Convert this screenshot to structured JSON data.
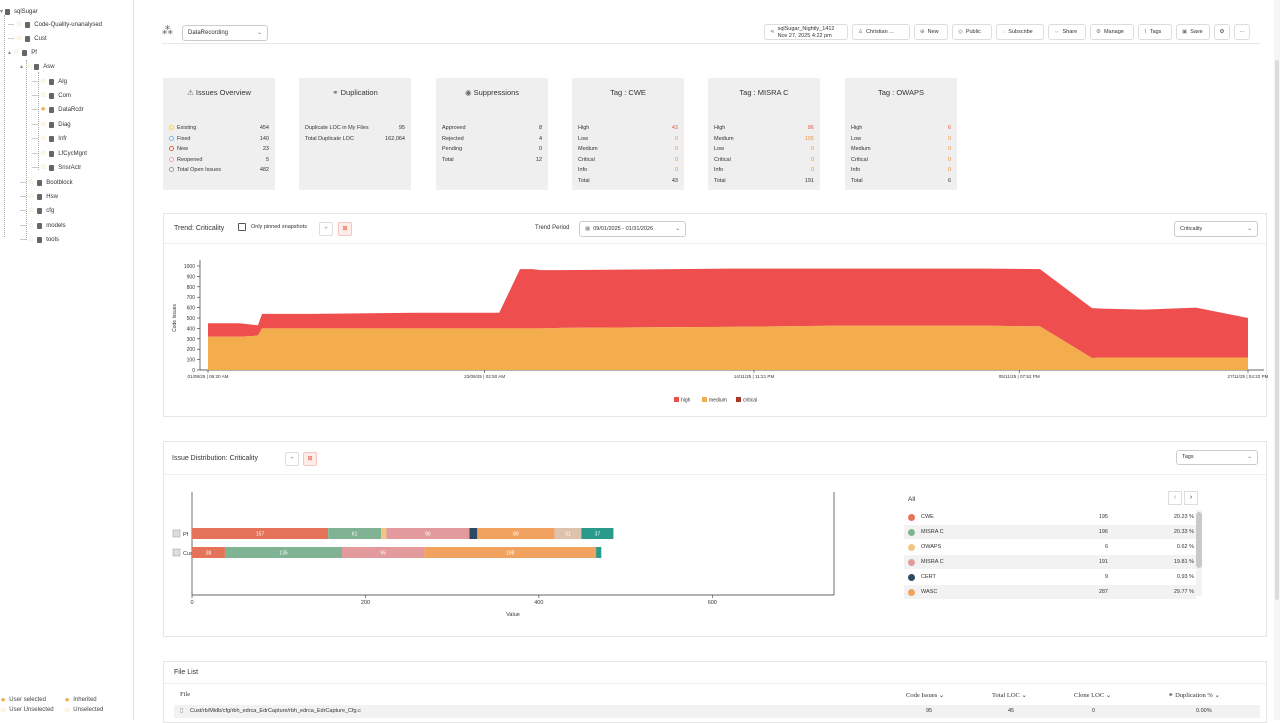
{
  "sidebar": {
    "root": "sqlSugar",
    "items": [
      {
        "label": "Code-Quality-unanalysed"
      },
      {
        "label": "Cust"
      },
      {
        "label": "Pf"
      },
      {
        "label": "Asw"
      },
      {
        "label": "Alg"
      },
      {
        "label": "Com"
      },
      {
        "label": "DataRcdr"
      },
      {
        "label": "Diag"
      },
      {
        "label": "Infr"
      },
      {
        "label": "LfCycMgnt"
      },
      {
        "label": "SnsrActr"
      },
      {
        "label": "Bootblock"
      },
      {
        "label": "Hsw"
      },
      {
        "label": "cfg"
      },
      {
        "label": "models"
      },
      {
        "label": "tools"
      }
    ],
    "legend": {
      "user_selected": "User selected",
      "inherited": "Inherited",
      "user_unselected": "User Unselected",
      "unselected": "Unselected"
    }
  },
  "toolbar": {
    "dashboard": "DataRecording",
    "snapshot_name": "sqlSugar_Nightly_1412",
    "snapshot_date": "Nov 27, 2025 4:22 pm",
    "user": "Christian ...",
    "new": "New",
    "public": "Public",
    "subscribe": "Subscribe",
    "share": "Share",
    "manage": "Manage",
    "tags": "Tags",
    "save": "Save",
    "more": "···"
  },
  "cards": {
    "issues": {
      "title": "Issues Overview",
      "rows": [
        {
          "label": "Existing",
          "value": "454"
        },
        {
          "label": "Fixed",
          "value": "140"
        },
        {
          "label": "New",
          "value": "23"
        },
        {
          "label": "Reopened",
          "value": "5"
        },
        {
          "label": "Total Open Issues",
          "value": "482"
        }
      ]
    },
    "duplication": {
      "title": "Duplication",
      "rows": [
        {
          "label": "Duplicate LOC in My Files",
          "value": "95"
        },
        {
          "label": "Total Duplicate LOC",
          "value": "162,064"
        }
      ]
    },
    "suppressions": {
      "title": "Suppressions",
      "rows": [
        {
          "label": "Approved",
          "value": "8"
        },
        {
          "label": "Rejected",
          "value": "4"
        },
        {
          "label": "Pending",
          "value": "0"
        },
        {
          "label": "Total",
          "value": "12"
        }
      ]
    },
    "cwe": {
      "title": "Tag : CWE",
      "rows": [
        {
          "label": "High",
          "value": "43"
        },
        {
          "label": "Low",
          "value": "0"
        },
        {
          "label": "Medium",
          "value": "0"
        },
        {
          "label": "Critical",
          "value": "0"
        },
        {
          "label": "Info",
          "value": "0"
        },
        {
          "label": "Total",
          "value": "43"
        }
      ]
    },
    "misra": {
      "title": "Tag : MISRA C",
      "rows": [
        {
          "label": "High",
          "value": "86"
        },
        {
          "label": "Medium",
          "value": "105"
        },
        {
          "label": "Low",
          "value": "0"
        },
        {
          "label": "Critical",
          "value": "0"
        },
        {
          "label": "Info",
          "value": "0"
        },
        {
          "label": "Total",
          "value": "191"
        }
      ]
    },
    "owaps": {
      "title": "Tag : OWAPS",
      "rows": [
        {
          "label": "High",
          "value": "6"
        },
        {
          "label": "Low",
          "value": "0"
        },
        {
          "label": "Medium",
          "value": "0"
        },
        {
          "label": "Critical",
          "value": "0"
        },
        {
          "label": "Info",
          "value": "0"
        },
        {
          "label": "Total",
          "value": "6"
        }
      ]
    }
  },
  "trend": {
    "title": "Trend: Criticality",
    "pinned_label": "Only pinned snapshots",
    "period_label": "Trend Period",
    "period_value": "09/01/2025 - 01/31/2026",
    "group_by": "Criticality"
  },
  "distribution": {
    "title_prefix": "Issue Distribution:",
    "title_value": "Criticality",
    "group_by": "Tags",
    "list_header": "All",
    "list": [
      {
        "name": "CWE",
        "count": "195",
        "pct": "20.23 %",
        "color": "#e5735a"
      },
      {
        "name": "MISRA C",
        "count": "196",
        "pct": "20.33 %",
        "color": "#7fb394"
      },
      {
        "name": "OWAPS",
        "count": "6",
        "pct": "0.62 %",
        "color": "#f0c77f"
      },
      {
        "name": "MISRA C",
        "count": "191",
        "pct": "19.81 %",
        "color": "#e39a9c"
      },
      {
        "name": "CERT",
        "count": "9",
        "pct": "0.93 %",
        "color": "#2c4a63"
      },
      {
        "name": "WASC",
        "count": "287",
        "pct": "29.77 %",
        "color": "#f2a25f"
      }
    ]
  },
  "file_list": {
    "title": "File List",
    "headers": {
      "file": "File",
      "code_issues": "Code Issues",
      "total_loc": "Total LOC",
      "clone_loc": "Clone LOC",
      "duplication": "Duplication %"
    },
    "rows": [
      {
        "file": "Cust/rb/Midb/cfg/rbh_edrca_EdrCapture/rbh_edrca_EdrCapture_Cfg.c",
        "code_issues": "95",
        "total_loc": "45",
        "clone_loc": "0",
        "duplication": "0.00%"
      }
    ]
  },
  "chart_data": [
    {
      "type": "area",
      "title": "",
      "ylabel": "Code Issues",
      "ylim": [
        0,
        1000
      ],
      "yticks": [
        "0",
        "100",
        "200",
        "300",
        "400",
        "500",
        "600",
        "700",
        "800",
        "900",
        "1000"
      ],
      "xticks": [
        "01/09/25 | 06:20 AM",
        "23/09/25 | 02:50 AM",
        "14/11/25 | 11:21 PM",
        "05/11/25 | 07:52 PM",
        "27/11/25 | 04:22 PM"
      ],
      "legend": [
        {
          "name": "high",
          "color": "#ef4e4e"
        },
        {
          "name": "medium",
          "color": "#f4ad4c"
        },
        {
          "name": "critical",
          "color": "#a8392a"
        }
      ],
      "x": [
        0,
        0.015,
        0.03,
        0.048,
        0.052,
        0.06,
        0.1,
        0.2,
        0.28,
        0.3,
        0.312,
        0.32,
        0.34,
        0.5,
        0.6,
        0.75,
        0.8,
        0.85,
        0.86,
        0.9,
        0.95,
        1.0
      ],
      "series": [
        {
          "name": "medium",
          "values": [
            320,
            320,
            320,
            330,
            400,
            400,
            400,
            400,
            400,
            400,
            400,
            400,
            405,
            415,
            425,
            425,
            420,
            115,
            120,
            120,
            120,
            120
          ]
        },
        {
          "name": "high",
          "values": [
            130,
            130,
            130,
            100,
            140,
            140,
            140,
            150,
            150,
            570,
            570,
            560,
            555,
            560,
            550,
            550,
            550,
            480,
            470,
            460,
            480,
            380
          ]
        },
        {
          "name": "critical",
          "values": [
            0,
            0,
            0,
            0,
            0,
            0,
            0,
            0,
            0,
            0,
            0,
            0,
            0,
            0,
            0,
            0,
            0,
            0,
            0,
            0,
            0,
            0
          ]
        }
      ]
    },
    {
      "type": "bar",
      "orientation": "horizontal",
      "stacked": true,
      "categories": [
        "Pf",
        "Cust"
      ],
      "xlabel": "Value",
      "xlim": [
        0,
        700
      ],
      "xticks": [
        0,
        200,
        400,
        600
      ],
      "series": [
        {
          "name": "CWE",
          "color": "#e5735a",
          "values": [
            157,
            38
          ]
        },
        {
          "name": "MISRA C",
          "color": "#7fb394",
          "values": [
            61,
            135
          ]
        },
        {
          "name": "OWAPS",
          "color": "#f0c77f",
          "values": [
            6,
            0
          ]
        },
        {
          "name": "MISRA C",
          "color": "#e39a9c",
          "values": [
            96,
            95
          ]
        },
        {
          "name": "CERT",
          "color": "#2c4a63",
          "values": [
            9,
            0
          ]
        },
        {
          "name": "WASC",
          "color": "#f2a25f",
          "values": [
            89,
            198
          ]
        },
        {
          "name": "",
          "color": "#dfc2ad",
          "values": [
            31,
            0
          ]
        },
        {
          "name": "",
          "color": "#2a9a8a",
          "values": [
            37,
            6
          ]
        }
      ]
    }
  ]
}
